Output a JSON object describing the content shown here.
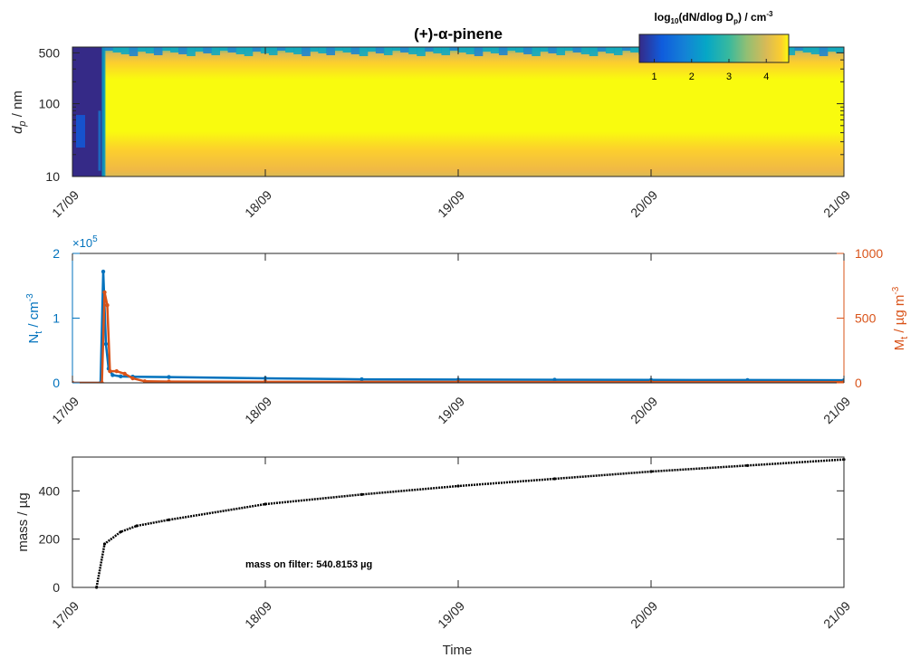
{
  "figure": {
    "title": "(+)-α-pinene",
    "x_tick_labels": [
      "17/09",
      "18/09",
      "19/09",
      "20/09",
      "21/09"
    ],
    "xlabel": "Time"
  },
  "chart_data": [
    {
      "type": "heatmap",
      "title": "(+)-α-pinene",
      "xlabel": "",
      "ylabel": "d_p / nm",
      "ylabel_main": "d",
      "ylabel_sub": "p",
      "ylabel_tail": " / nm",
      "y_scale": "log",
      "ylim": [
        10,
        600
      ],
      "y_ticks": [
        10,
        100,
        500
      ],
      "y_tick_labels": [
        "10",
        "100",
        "500"
      ],
      "xlim": [
        "2000-09-17",
        "2000-09-21"
      ],
      "colorbar": {
        "label": "log10(dN/dlog Dp) / cm^-3",
        "label_parts": [
          "log",
          "10",
          "(dN/dlog D",
          "p",
          ") / cm",
          "-3"
        ],
        "range": [
          0.6,
          4.6
        ],
        "ticks": [
          1,
          2,
          3,
          4
        ],
        "colormap": "parula",
        "placement": "top-right inside"
      },
      "description_values": {
        "background_log10": 0.6,
        "plateau_log10_core": 4.4,
        "plateau_start": "2000-09-17T04:00",
        "plateau_diameter_range_nm": [
          12,
          400
        ]
      }
    },
    {
      "type": "line",
      "xlim": [
        "2000-09-17",
        "2000-09-21"
      ],
      "series": [
        {
          "name": "N_t",
          "axis": "left",
          "color": "#0072BD",
          "ylim": [
            0,
            200000
          ],
          "y_ticks": [
            0,
            1,
            2
          ],
          "y_multiplier_label": "×10",
          "y_multiplier_exp": "5",
          "ylabel_main": "N",
          "ylabel_sub": "t",
          "ylabel_tail": " / cm",
          "ylabel_sup": "-3",
          "points": [
            [
              "2000-09-17T00:00",
              0
            ],
            [
              "2000-09-17T03:30",
              0
            ],
            [
              "2000-09-17T03:50",
              172000
            ],
            [
              "2000-09-17T04:10",
              60000
            ],
            [
              "2000-09-17T04:30",
              22000
            ],
            [
              "2000-09-17T05:00",
              12000
            ],
            [
              "2000-09-17T06:00",
              10000
            ],
            [
              "2000-09-17T07:30",
              9500
            ],
            [
              "2000-09-17T12:00",
              9000
            ],
            [
              "2000-09-18T00:00",
              7000
            ],
            [
              "2000-09-18T12:00",
              5500
            ],
            [
              "2000-09-19T00:00",
              5000
            ],
            [
              "2000-09-19T12:00",
              4800
            ],
            [
              "2000-09-20T00:00",
              4500
            ],
            [
              "2000-09-20T12:00",
              4300
            ],
            [
              "2000-09-21T00:00",
              4000
            ]
          ]
        },
        {
          "name": "M_t",
          "axis": "right",
          "color": "#D95319",
          "ylim": [
            0,
            1000
          ],
          "y_ticks": [
            0,
            500,
            1000
          ],
          "ylabel_main": "M",
          "ylabel_sub": "t",
          "ylabel_tail": " / µg m",
          "ylabel_sup": "-3",
          "points": [
            [
              "2000-09-17T00:00",
              0
            ],
            [
              "2000-09-17T03:40",
              0
            ],
            [
              "2000-09-17T04:00",
              700
            ],
            [
              "2000-09-17T04:20",
              600
            ],
            [
              "2000-09-17T04:40",
              90
            ],
            [
              "2000-09-17T05:30",
              90
            ],
            [
              "2000-09-17T06:30",
              70
            ],
            [
              "2000-09-17T07:30",
              35
            ],
            [
              "2000-09-17T09:00",
              12
            ],
            [
              "2000-09-17T12:00",
              10
            ],
            [
              "2000-09-18T00:00",
              8
            ],
            [
              "2000-09-19T00:00",
              7
            ],
            [
              "2000-09-20T00:00",
              6
            ],
            [
              "2000-09-21T00:00",
              6
            ]
          ]
        }
      ]
    },
    {
      "type": "scatter",
      "xlabel": "Time",
      "ylabel": "mass / µg",
      "ylim": [
        0,
        540
      ],
      "y_ticks": [
        0,
        200,
        400
      ],
      "xlim": [
        "2000-09-17",
        "2000-09-21"
      ],
      "annotation": "mass on filter: 540.8153 µg",
      "series": [
        {
          "name": "mass",
          "color": "#000000",
          "points": [
            [
              "2000-09-17T03:00",
              0
            ],
            [
              "2000-09-17T04:00",
              180
            ],
            [
              "2000-09-17T06:00",
              230
            ],
            [
              "2000-09-17T08:00",
              255
            ],
            [
              "2000-09-17T12:00",
              280
            ],
            [
              "2000-09-18T00:00",
              345
            ],
            [
              "2000-09-18T12:00",
              385
            ],
            [
              "2000-09-19T00:00",
              420
            ],
            [
              "2000-09-19T12:00",
              450
            ],
            [
              "2000-09-20T00:00",
              480
            ],
            [
              "2000-09-20T12:00",
              505
            ],
            [
              "2000-09-21T00:00",
              530
            ]
          ]
        }
      ]
    }
  ]
}
